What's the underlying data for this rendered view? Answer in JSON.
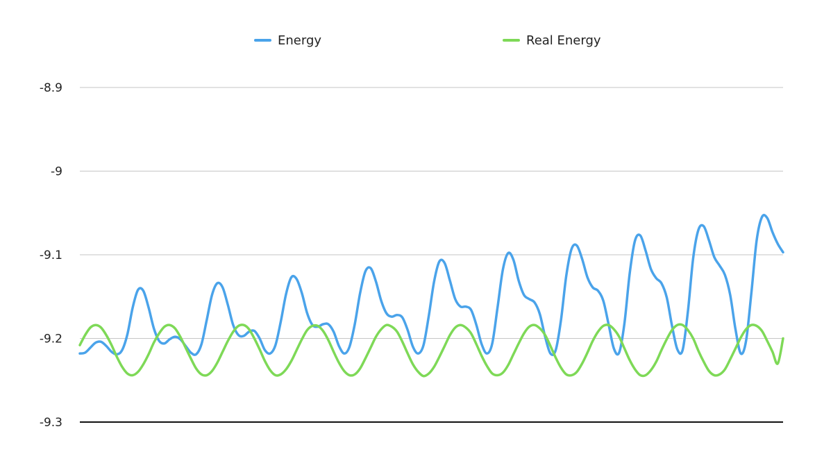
{
  "chart_data": {
    "type": "line",
    "title": "",
    "xlabel": "",
    "ylabel": "",
    "ylim": [
      -9.3,
      -8.85
    ],
    "yticks": [
      -8.9,
      -9,
      -9.1,
      -9.2,
      -9.3
    ],
    "ytick_labels": [
      "-8.9",
      "-9",
      "-9.1",
      "-9.2",
      "-9.3"
    ],
    "grid": true,
    "legend_position": "top-center",
    "series": [
      {
        "name": "Energy",
        "color": "#4aa3ea",
        "values": [
          -9.218,
          -9.217,
          -9.211,
          -9.205,
          -9.204,
          -9.209,
          -9.216,
          -9.219,
          -9.214,
          -9.195,
          -9.163,
          -9.142,
          -9.143,
          -9.163,
          -9.188,
          -9.203,
          -9.206,
          -9.201,
          -9.198,
          -9.201,
          -9.209,
          -9.217,
          -9.219,
          -9.207,
          -9.178,
          -9.148,
          -9.134,
          -9.139,
          -9.16,
          -9.184,
          -9.196,
          -9.197,
          -9.192,
          -9.191,
          -9.2,
          -9.214,
          -9.218,
          -9.208,
          -9.18,
          -9.147,
          -9.127,
          -9.129,
          -9.146,
          -9.17,
          -9.184,
          -9.186,
          -9.183,
          -9.183,
          -9.192,
          -9.209,
          -9.218,
          -9.21,
          -9.183,
          -9.146,
          -9.12,
          -9.116,
          -9.132,
          -9.155,
          -9.17,
          -9.174,
          -9.172,
          -9.175,
          -9.19,
          -9.21,
          -9.218,
          -9.208,
          -9.173,
          -9.132,
          -9.108,
          -9.11,
          -9.131,
          -9.153,
          -9.162,
          -9.162,
          -9.166,
          -9.184,
          -9.207,
          -9.218,
          -9.206,
          -9.163,
          -9.118,
          -9.098,
          -9.106,
          -9.131,
          -9.148,
          -9.153,
          -9.157,
          -9.171,
          -9.198,
          -9.218,
          -9.214,
          -9.178,
          -9.125,
          -9.093,
          -9.089,
          -9.105,
          -9.127,
          -9.139,
          -9.143,
          -9.155,
          -9.183,
          -9.212,
          -9.217,
          -9.182,
          -9.122,
          -9.083,
          -9.077,
          -9.095,
          -9.117,
          -9.128,
          -9.134,
          -9.151,
          -9.185,
          -9.213,
          -9.214,
          -9.168,
          -9.104,
          -9.07,
          -9.066,
          -9.083,
          -9.103,
          -9.113,
          -9.124,
          -9.148,
          -9.189,
          -9.218,
          -9.203,
          -9.146,
          -9.083,
          -9.055,
          -9.056,
          -9.073,
          -9.087,
          -9.097
        ]
      },
      {
        "name": "Real Energy",
        "color": "#7ed957",
        "values": [
          -9.208,
          -9.196,
          -9.187,
          -9.184,
          -9.187,
          -9.196,
          -9.208,
          -9.222,
          -9.234,
          -9.242,
          -9.244,
          -9.24,
          -9.231,
          -9.219,
          -9.205,
          -9.194,
          -9.186,
          -9.184,
          -9.188,
          -9.198,
          -9.211,
          -9.224,
          -9.236,
          -9.243,
          -9.244,
          -9.239,
          -9.229,
          -9.216,
          -9.203,
          -9.192,
          -9.185,
          -9.184,
          -9.189,
          -9.2,
          -9.213,
          -9.227,
          -9.238,
          -9.244,
          -9.243,
          -9.237,
          -9.227,
          -9.214,
          -9.201,
          -9.19,
          -9.185,
          -9.185,
          -9.191,
          -9.202,
          -9.216,
          -9.229,
          -9.239,
          -9.244,
          -9.243,
          -9.236,
          -9.224,
          -9.211,
          -9.198,
          -9.189,
          -9.184,
          -9.186,
          -9.192,
          -9.204,
          -9.218,
          -9.231,
          -9.24,
          -9.245,
          -9.242,
          -9.234,
          -9.222,
          -9.209,
          -9.196,
          -9.187,
          -9.184,
          -9.187,
          -9.194,
          -9.207,
          -9.221,
          -9.233,
          -9.242,
          -9.244,
          -9.241,
          -9.232,
          -9.219,
          -9.206,
          -9.194,
          -9.186,
          -9.184,
          -9.188,
          -9.196,
          -9.209,
          -9.223,
          -9.235,
          -9.243,
          -9.244,
          -9.24,
          -9.23,
          -9.217,
          -9.203,
          -9.192,
          -9.185,
          -9.184,
          -9.189,
          -9.198,
          -9.212,
          -9.226,
          -9.237,
          -9.244,
          -9.244,
          -9.238,
          -9.228,
          -9.214,
          -9.201,
          -9.19,
          -9.184,
          -9.184,
          -9.19,
          -9.2,
          -9.215,
          -9.228,
          -9.239,
          -9.244,
          -9.243,
          -9.237,
          -9.225,
          -9.212,
          -9.199,
          -9.189,
          -9.184,
          -9.185,
          -9.191,
          -9.203,
          -9.216,
          -9.23,
          -9.2
        ]
      }
    ]
  }
}
